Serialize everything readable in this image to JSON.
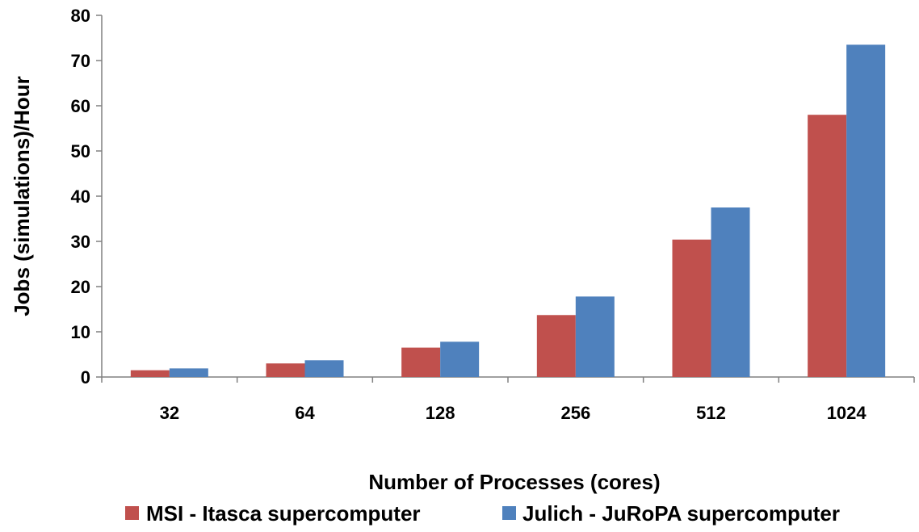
{
  "chart_data": {
    "type": "bar",
    "categories": [
      "32",
      "64",
      "128",
      "256",
      "512",
      "1024"
    ],
    "series": [
      {
        "name": "MSI - Itasca supercomputer",
        "color": "#c0504d",
        "values": [
          1.5,
          3.0,
          6.5,
          13.7,
          30.4,
          58.0
        ]
      },
      {
        "name": "Julich - JuRoPA supercomputer",
        "color": "#4f81bd",
        "values": [
          1.9,
          3.7,
          7.8,
          17.8,
          37.5,
          73.5
        ]
      }
    ],
    "xlabel": "Number of Processes (cores)",
    "ylabel": "Jobs (simulations)/Hour",
    "ylim": [
      0,
      80
    ],
    "yticks": [
      0,
      10,
      20,
      30,
      40,
      50,
      60,
      70,
      80
    ],
    "grid": false,
    "legend_position": "bottom"
  }
}
